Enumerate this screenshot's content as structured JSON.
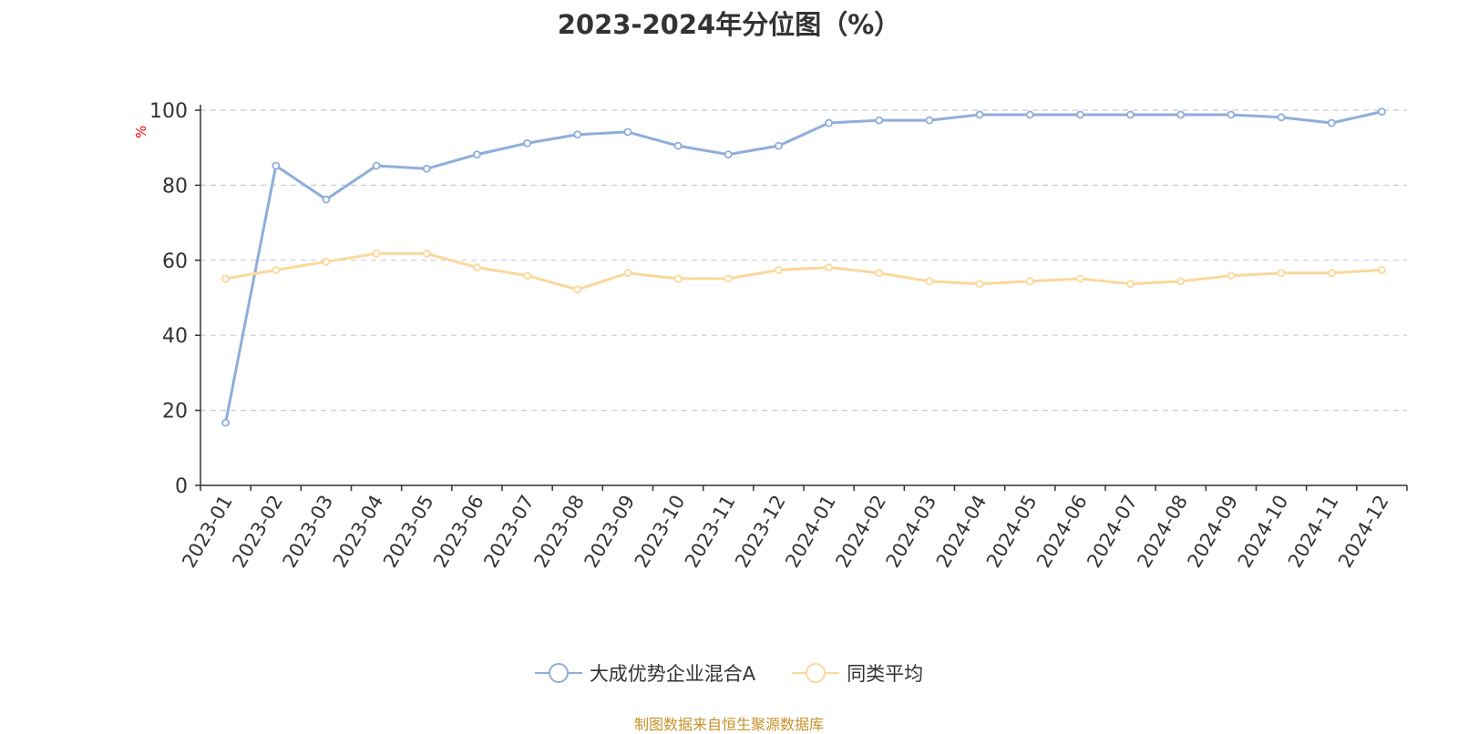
{
  "chart_data": {
    "type": "line",
    "title": "2023-2024年分位图（%）",
    "ylabel": "%",
    "ylim": [
      0,
      100
    ],
    "yticks": [
      0,
      20,
      40,
      60,
      80,
      100
    ],
    "grid": true,
    "legend_position": "bottom-center",
    "categories": [
      "2023-01",
      "2023-02",
      "2023-03",
      "2023-04",
      "2023-05",
      "2023-06",
      "2023-07",
      "2023-08",
      "2023-09",
      "2023-10",
      "2023-11",
      "2023-12",
      "2024-01",
      "2024-02",
      "2024-03",
      "2024-04",
      "2024-05",
      "2024-06",
      "2024-07",
      "2024-08",
      "2024-09",
      "2024-10",
      "2024-11",
      "2024-12"
    ],
    "series": [
      {
        "name": "大成优势企业混合A",
        "color": "#8eaedb",
        "values": [
          16.7,
          85.2,
          76.2,
          85.2,
          84.4,
          88.2,
          91.2,
          93.5,
          94.2,
          90.5,
          88.2,
          90.5,
          96.6,
          97.3,
          97.3,
          98.8,
          98.8,
          98.8,
          98.8,
          98.8,
          98.8,
          98.1,
          96.6,
          99.6
        ]
      },
      {
        "name": "同类平均",
        "color": "#fbd89b",
        "values": [
          55.1,
          57.4,
          59.6,
          61.8,
          61.8,
          58.1,
          55.9,
          52.2,
          56.6,
          55.1,
          55.1,
          57.4,
          58.1,
          56.6,
          54.4,
          53.7,
          54.4,
          55.1,
          53.7,
          54.4,
          55.9,
          56.6,
          56.6,
          57.4
        ]
      }
    ]
  },
  "source_text": "制图数据来自恒生聚源数据库"
}
